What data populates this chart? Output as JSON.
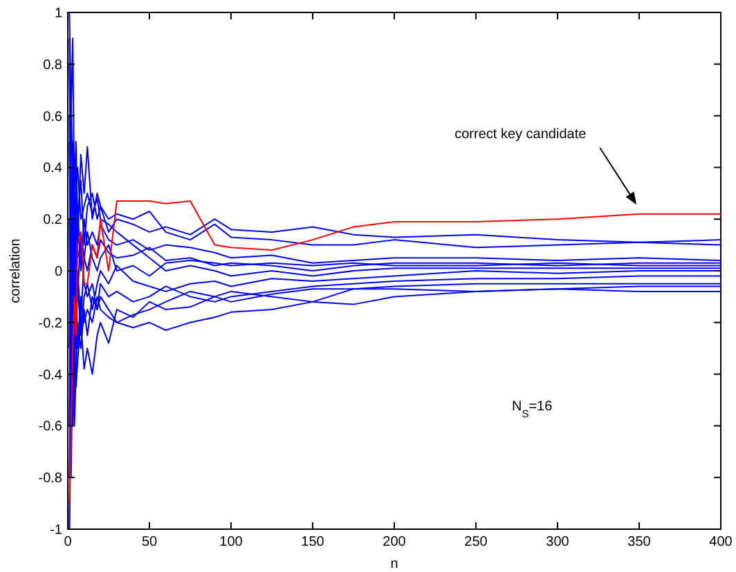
{
  "chart_data": {
    "type": "line",
    "xlabel": "n",
    "ylabel": "correlation",
    "x": [
      1,
      2,
      3,
      4,
      5,
      6,
      8,
      10,
      12,
      15,
      18,
      20,
      25,
      30,
      40,
      50,
      60,
      75,
      90,
      100,
      125,
      150,
      175,
      200,
      250,
      300,
      350,
      400
    ],
    "xlim": [
      0,
      400
    ],
    "xticks": [
      0,
      50,
      100,
      150,
      200,
      250,
      300,
      350,
      400
    ],
    "ylim": [
      -1,
      1
    ],
    "yticks": [
      -1,
      -0.8,
      -0.6,
      -0.4,
      -0.2,
      0,
      0.2,
      0.4,
      0.6,
      0.8,
      1
    ],
    "grid": false,
    "marker": "none",
    "line_style": "solid",
    "series": [
      {
        "color": "#0000ff",
        "values": [
          1,
          0.6,
          0.9,
          0.3,
          0.5,
          0.2,
          0.35,
          0.1,
          0.25,
          0.3,
          0.2,
          0.25,
          0.15,
          0.2,
          0.18,
          0.15,
          0.17,
          0.14,
          0.2,
          0.16,
          0.15,
          0.17,
          0.14,
          0.13,
          0.14,
          0.12,
          0.11,
          0.12
        ]
      },
      {
        "color": "#0000ff",
        "values": [
          -1,
          -0.5,
          0.2,
          -0.3,
          0.4,
          0.1,
          0.45,
          0.3,
          0.48,
          0.2,
          0.3,
          0.25,
          0.2,
          0.22,
          0.2,
          0.23,
          0.15,
          0.12,
          0.18,
          0.13,
          0.12,
          0.1,
          0.1,
          0.12,
          0.09,
          0.1,
          0.11,
          0.1
        ]
      },
      {
        "color": "#0000ff",
        "values": [
          0.8,
          0.2,
          -0.4,
          0.1,
          -0.2,
          0.25,
          0,
          0.2,
          0.1,
          0.15,
          0.1,
          0.18,
          0.12,
          0.1,
          0.12,
          0.08,
          0.1,
          0.09,
          0.07,
          0.05,
          0.06,
          0.03,
          0.04,
          0.05,
          0.05,
          0.04,
          0.05,
          0.04
        ]
      },
      {
        "color": "#0000ff",
        "values": [
          -0.6,
          0.4,
          -0.2,
          0.3,
          0.05,
          -0.1,
          0.15,
          0.05,
          0,
          0.1,
          0.05,
          0.12,
          0.07,
          0.05,
          0.06,
          0.09,
          0.04,
          0.05,
          0.02,
          0.03,
          0.02,
          0,
          0.02,
          0.03,
          0.03,
          0.02,
          0.03,
          0.03
        ]
      },
      {
        "color": "#0000ff",
        "values": [
          0.5,
          -0.3,
          0.1,
          -0.5,
          -0.1,
          0,
          -0.2,
          0.05,
          0.15,
          0.05,
          0,
          0.05,
          0.1,
          0,
          0.02,
          -0.02,
          0.03,
          0.04,
          0.03,
          0.02,
          0.03,
          0.02,
          0.03,
          0.02,
          0.02,
          0.03,
          0.02,
          0.02
        ]
      },
      {
        "color": "#0000ff",
        "values": [
          -0.8,
          -0.2,
          -0.6,
          0,
          -0.3,
          -0.05,
          -0.25,
          -0.1,
          -0.05,
          -0.15,
          -0.05,
          0,
          -0.05,
          0.02,
          -0.04,
          -0.06,
          -0.08,
          -0.05,
          -0.04,
          -0.06,
          -0.03,
          -0.04,
          -0.03,
          -0.02,
          0,
          -0.01,
          0,
          0
        ]
      },
      {
        "color": "#0000ff",
        "values": [
          0.2,
          -0.8,
          -0.3,
          -0.6,
          -0.4,
          -0.2,
          -0.3,
          -0.15,
          -0.25,
          -0.1,
          -0.15,
          -0.05,
          -0.1,
          -0.08,
          -0.12,
          -0.1,
          -0.06,
          -0.1,
          -0.12,
          -0.1,
          -0.08,
          -0.06,
          -0.05,
          -0.04,
          -0.03,
          -0.03,
          -0.02,
          -0.02
        ]
      },
      {
        "color": "#0000ff",
        "values": [
          -1,
          0.1,
          -0.5,
          -0.3,
          -0.45,
          -0.35,
          -0.2,
          -0.38,
          -0.3,
          -0.4,
          -0.25,
          -0.2,
          -0.28,
          -0.15,
          -0.18,
          -0.12,
          -0.15,
          -0.14,
          -0.1,
          -0.12,
          -0.09,
          -0.07,
          -0.07,
          -0.06,
          -0.05,
          -0.05,
          -0.05,
          -0.05
        ]
      },
      {
        "color": "#0000ff",
        "values": [
          0.9,
          0.3,
          -0.1,
          -0.2,
          0,
          -0.3,
          -0.1,
          -0.2,
          -0.15,
          -0.2,
          -0.1,
          -0.15,
          -0.18,
          -0.2,
          -0.17,
          -0.15,
          -0.12,
          -0.08,
          -0.1,
          -0.08,
          -0.1,
          -0.12,
          -0.07,
          -0.07,
          -0.08,
          -0.07,
          -0.08,
          -0.08
        ]
      },
      {
        "color": "#0000ff",
        "values": [
          -0.3,
          0.7,
          0.3,
          0.1,
          0.2,
          0.05,
          0.1,
          -0.05,
          -0.1,
          -0.05,
          -0.15,
          -0.1,
          -0.15,
          -0.2,
          -0.22,
          -0.2,
          -0.23,
          -0.2,
          -0.18,
          -0.16,
          -0.15,
          -0.12,
          -0.13,
          -0.1,
          -0.08,
          -0.07,
          -0.06,
          -0.06
        ]
      },
      {
        "color": "#0000ff",
        "values": [
          0.6,
          -0.1,
          0.5,
          0.2,
          0.3,
          0.4,
          0.2,
          0.25,
          0.3,
          0.22,
          0.28,
          0.2,
          0.18,
          0.15,
          0.1,
          0.05,
          0,
          0.02,
          0,
          -0.02,
          0,
          -0.02,
          0,
          0.01,
          0.01,
          0.01,
          0.01,
          0.01
        ]
      },
      {
        "color": "#ff0000",
        "values": [
          -0.9,
          -0.6,
          -0.3,
          -0.1,
          -0.25,
          0.1,
          0.15,
          -0.05,
          -0.05,
          0.1,
          0.05,
          0.2,
          0,
          0.27,
          0.27,
          0.27,
          0.26,
          0.27,
          0.1,
          0.09,
          0.08,
          0.12,
          0.17,
          0.19,
          0.19,
          0.2,
          0.22,
          0.22
        ]
      }
    ],
    "annotations": [
      "correct key candidate",
      "N$_{S}$=16"
    ]
  }
}
